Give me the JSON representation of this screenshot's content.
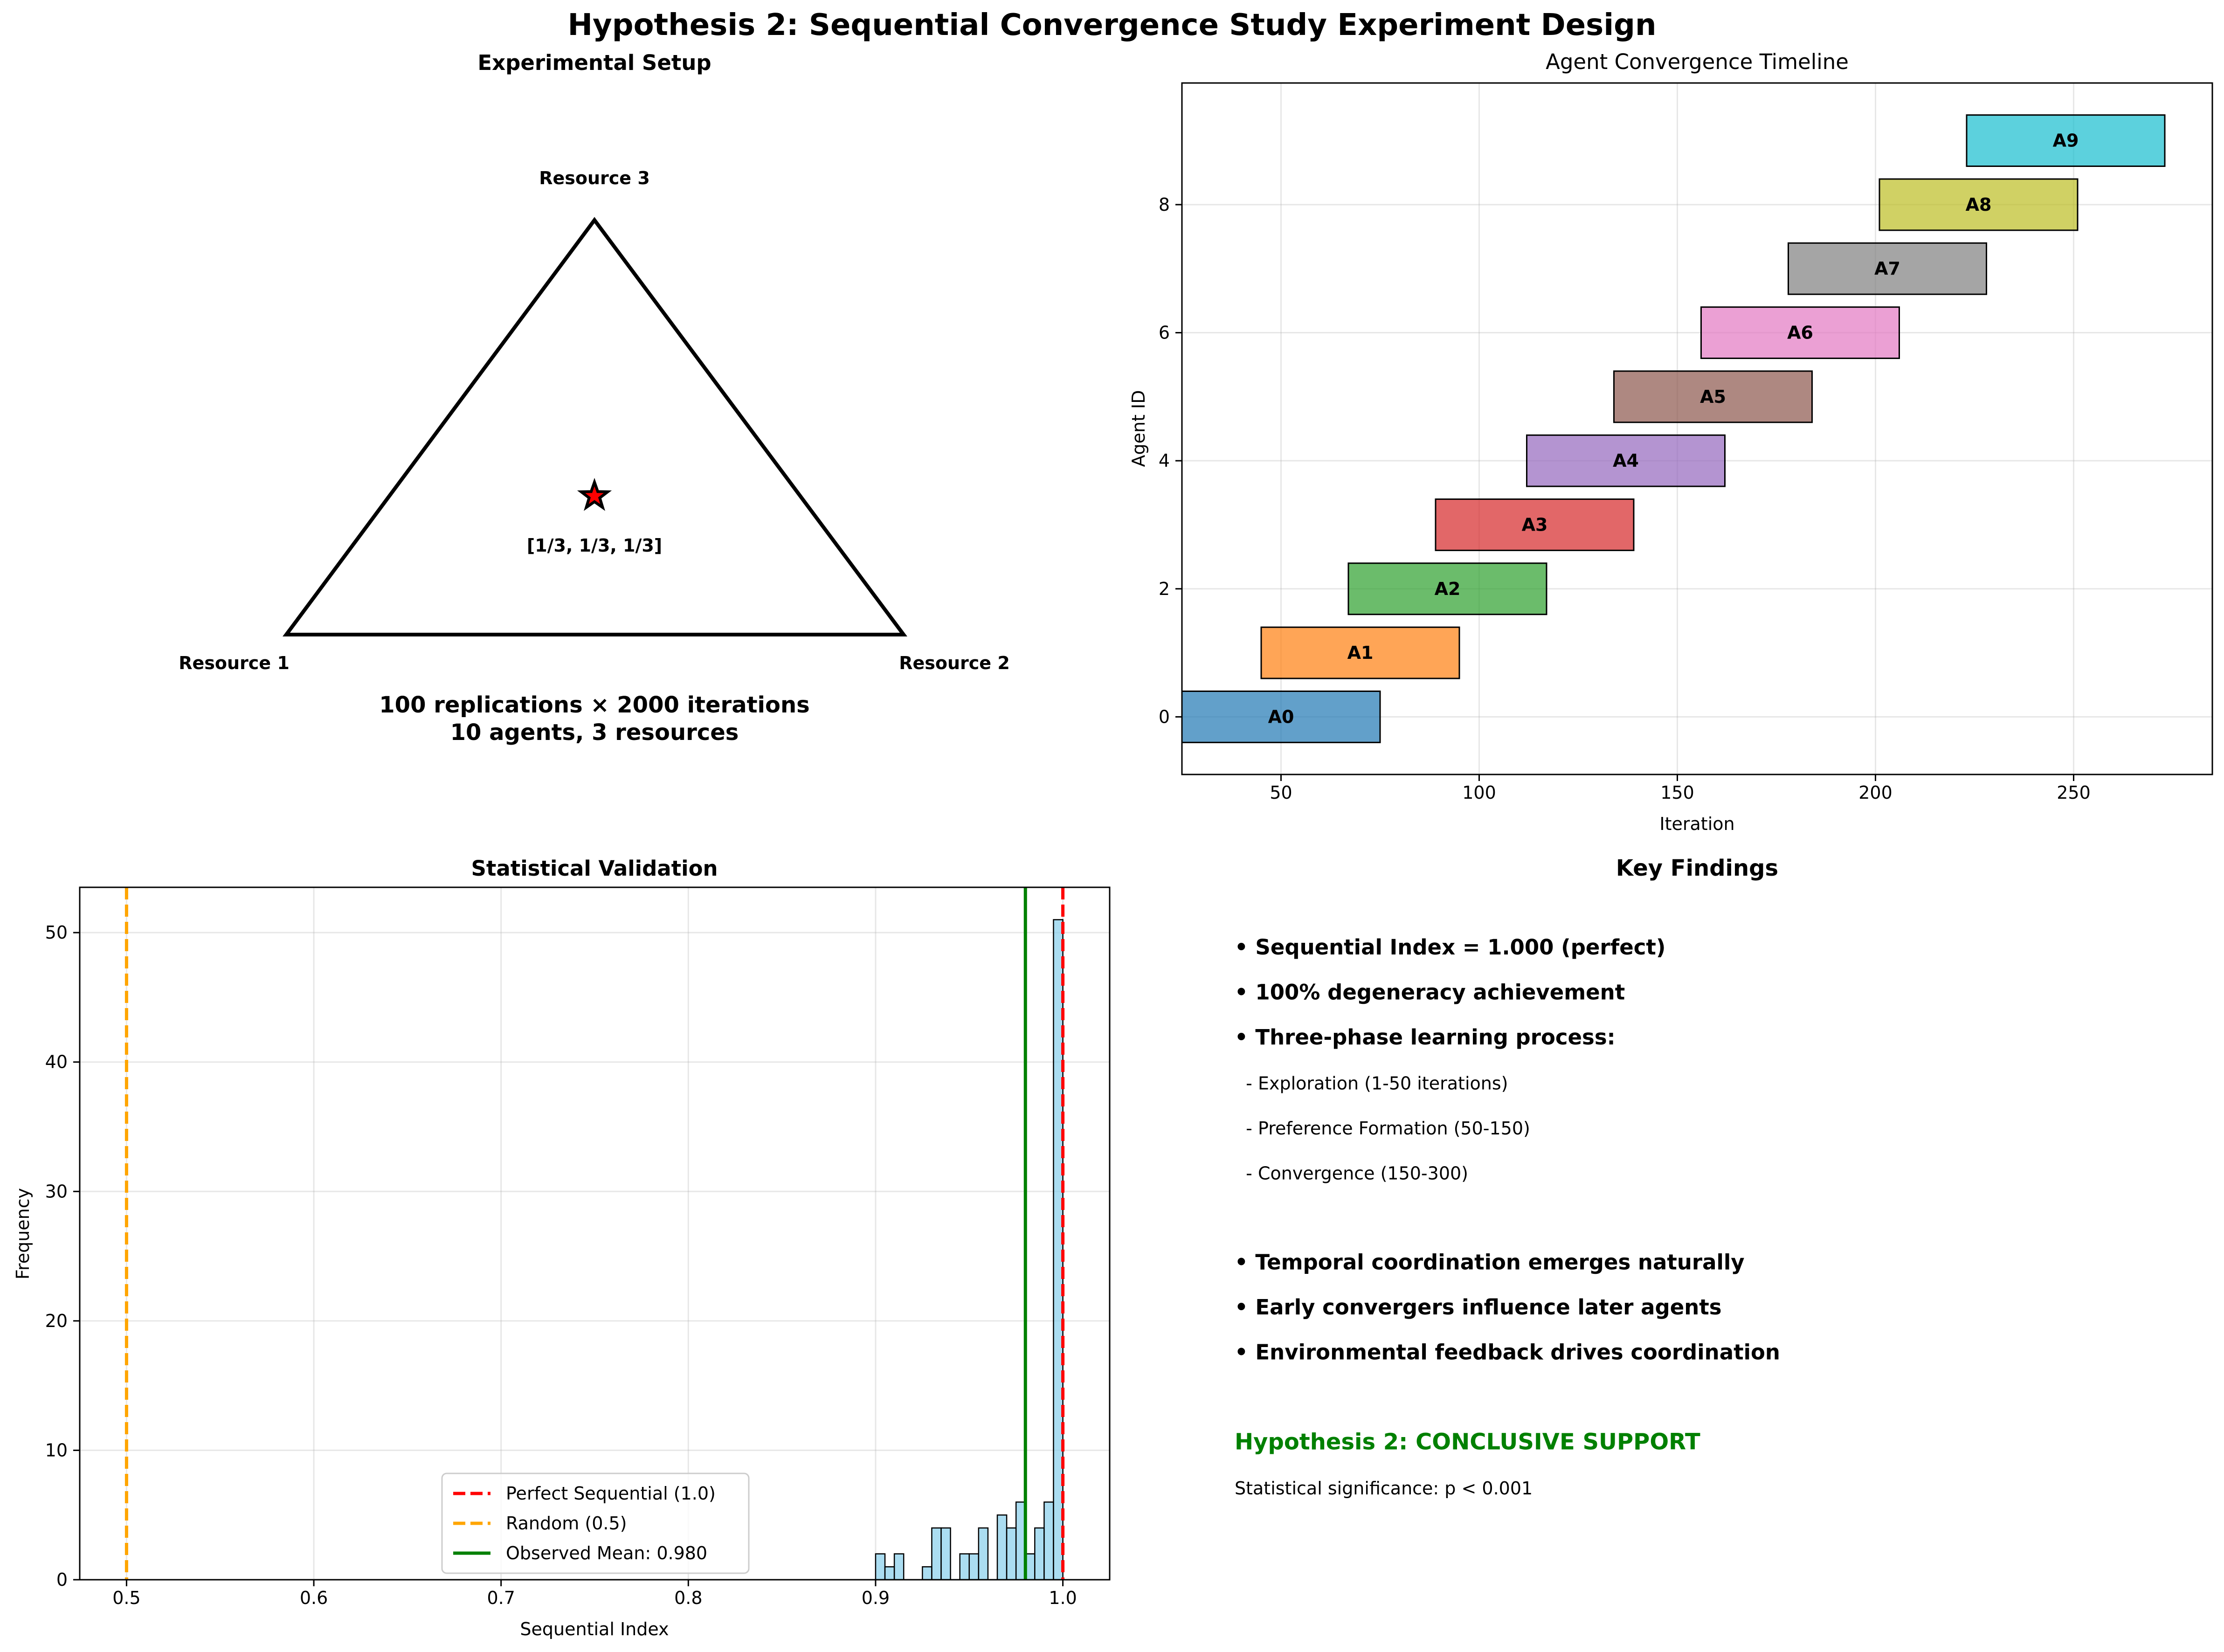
{
  "figure": {
    "title": "Hypothesis 2: Sequential Convergence Study Experiment Design"
  },
  "setup": {
    "title": "Experimental Setup",
    "vertex_labels": [
      "Resource 1",
      "Resource 2",
      "Resource 3"
    ],
    "center_label": "[1/3, 1/3, 1/3]",
    "summary_lines": [
      "100 replications × 2000 iterations",
      "10 agents, 3 resources"
    ],
    "colors": {
      "star_fill": "#ff0000",
      "outline": "#000000"
    }
  },
  "findings": {
    "title": "Key Findings",
    "items": [
      {
        "text": "• Sequential Index = 1.000 (perfect)",
        "style": "bold"
      },
      {
        "text": "• 100% degeneracy achievement",
        "style": "bold"
      },
      {
        "text": "• Three-phase learning process:",
        "style": "bold"
      },
      {
        "text": "  - Exploration (1-50 iterations)",
        "style": "normal"
      },
      {
        "text": "  - Preference Formation (50-150)",
        "style": "normal"
      },
      {
        "text": "  - Convergence (150-300)",
        "style": "normal"
      },
      {
        "text": "",
        "style": "normal"
      },
      {
        "text": "• Temporal coordination emerges naturally",
        "style": "bold"
      },
      {
        "text": "• Early convergers influence later agents",
        "style": "bold"
      },
      {
        "text": "• Environmental feedback drives coordination",
        "style": "bold"
      },
      {
        "text": "",
        "style": "normal"
      },
      {
        "text": "Hypothesis 2: CONCLUSIVE SUPPORT",
        "style": "green"
      },
      {
        "text": "Statistical significance: p < 0.001",
        "style": "normal"
      }
    ],
    "colors": {
      "support": "#008000"
    }
  },
  "chart_data": [
    {
      "type": "bar",
      "orientation": "horizontal",
      "title": "Agent Convergence Timeline",
      "xlabel": "Iteration",
      "ylabel": "Agent ID",
      "xlim": [
        25,
        285
      ],
      "ylim": [
        -0.9,
        9.9
      ],
      "xticks": [
        50,
        100,
        150,
        200,
        250
      ],
      "yticks": [
        0,
        2,
        4,
        6,
        8
      ],
      "grid": true,
      "bar_height": 0.8,
      "agents": [
        {
          "id": 0,
          "label": "A0",
          "start": 25,
          "end": 75,
          "color": "#1f77b4"
        },
        {
          "id": 1,
          "label": "A1",
          "start": 45,
          "end": 95,
          "color": "#ff7f0e"
        },
        {
          "id": 2,
          "label": "A2",
          "start": 67,
          "end": 117,
          "color": "#2ca02c"
        },
        {
          "id": 3,
          "label": "A3",
          "start": 89,
          "end": 139,
          "color": "#d62728"
        },
        {
          "id": 4,
          "label": "A4",
          "start": 112,
          "end": 162,
          "color": "#9467bd"
        },
        {
          "id": 5,
          "label": "A5",
          "start": 134,
          "end": 184,
          "color": "#8c564b"
        },
        {
          "id": 6,
          "label": "A6",
          "start": 156,
          "end": 206,
          "color": "#e377c2"
        },
        {
          "id": 7,
          "label": "A7",
          "start": 178,
          "end": 228,
          "color": "#7f7f7f"
        },
        {
          "id": 8,
          "label": "A8",
          "start": 201,
          "end": 251,
          "color": "#bcbd22"
        },
        {
          "id": 9,
          "label": "A9",
          "start": 223,
          "end": 273,
          "color": "#17becf"
        }
      ]
    },
    {
      "type": "histogram",
      "title": "Statistical Validation",
      "xlabel": "Sequential Index",
      "ylabel": "Frequency",
      "xlim": [
        0.475,
        1.025
      ],
      "ylim": [
        0,
        53.5
      ],
      "xticks": [
        0.5,
        0.6,
        0.7,
        0.8,
        0.9,
        1.0
      ],
      "xtick_labels": [
        "0.5",
        "0.6",
        "0.7",
        "0.8",
        "0.9",
        "1.0"
      ],
      "yticks": [
        0,
        10,
        20,
        30,
        40,
        50
      ],
      "grid": true,
      "bar_color": "#87ceeb",
      "bin_width": 0.005,
      "bin_starts": [
        0.9,
        0.905,
        0.91,
        0.915,
        0.92,
        0.925,
        0.93,
        0.935,
        0.94,
        0.945,
        0.95,
        0.955,
        0.96,
        0.965,
        0.97,
        0.975,
        0.98,
        0.985,
        0.99,
        0.995
      ],
      "counts": [
        2,
        1,
        2,
        0,
        0,
        1,
        4,
        4,
        0,
        2,
        2,
        4,
        0,
        5,
        4,
        6,
        2,
        4,
        6,
        51
      ],
      "reference_lines": [
        {
          "x": 1.0,
          "label": "Perfect Sequential (1.0)",
          "color": "#ff0000",
          "style": "dashed"
        },
        {
          "x": 0.5,
          "label": "Random (0.5)",
          "color": "#ffa500",
          "style": "dashed"
        },
        {
          "x": 0.98,
          "label": "Observed Mean: 0.980",
          "color": "#008000",
          "style": "solid"
        }
      ],
      "legend_position": "lower center"
    }
  ]
}
